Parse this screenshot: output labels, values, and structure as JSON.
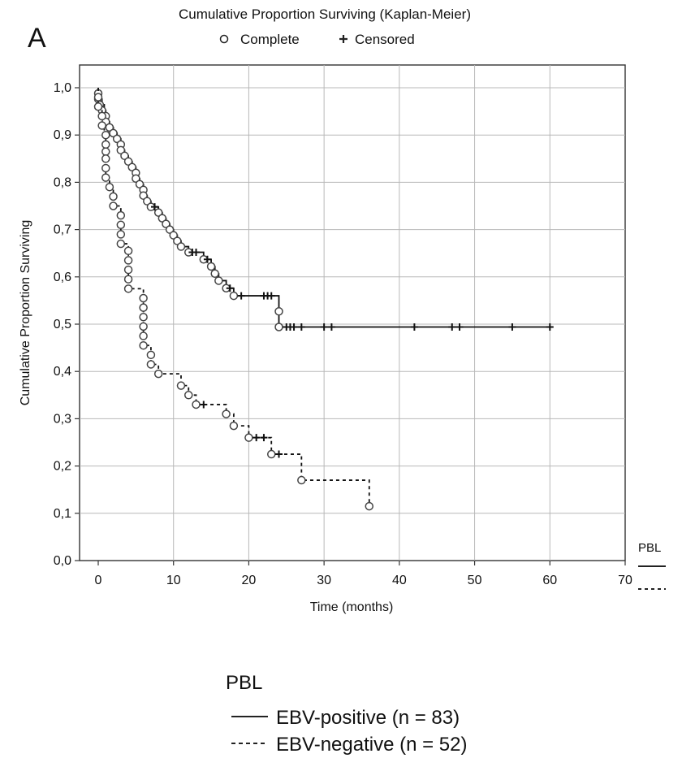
{
  "chart_data": {
    "type": "line",
    "panel_label": "A",
    "title": "Cumulative Proportion Surviving (Kaplan-Meier)",
    "marker_legend": [
      {
        "symbol": "circle",
        "label": "Complete"
      },
      {
        "symbol": "plus",
        "label": "Censored"
      }
    ],
    "xlabel": "Time (months)",
    "ylabel": "Cumulative Proportion Surviving",
    "xlim": [
      0,
      70
    ],
    "ylim": [
      0,
      1
    ],
    "xticks": [
      "0",
      "10",
      "20",
      "30",
      "40",
      "50",
      "60",
      "70"
    ],
    "yticks": [
      "0,0",
      "0,1",
      "0,2",
      "0,3",
      "0,4",
      "0,5",
      "0,6",
      "0,7",
      "0,8",
      "0,9",
      "1,0"
    ],
    "grid": true,
    "side_legend_title": "PBL",
    "legend_title": "PBL",
    "series": [
      {
        "name": "EBV-positive (n = 83)",
        "line_style": "solid",
        "steps": [
          [
            0,
            1.0
          ],
          [
            0,
            0.988
          ],
          [
            0.2,
            0.976
          ],
          [
            0.5,
            0.964
          ],
          [
            0.8,
            0.952
          ],
          [
            1,
            0.94
          ],
          [
            1.2,
            0.928
          ],
          [
            1.5,
            0.916
          ],
          [
            2,
            0.904
          ],
          [
            2.5,
            0.892
          ],
          [
            3,
            0.88
          ],
          [
            3.2,
            0.868
          ],
          [
            3.5,
            0.856
          ],
          [
            4,
            0.844
          ],
          [
            4.5,
            0.832
          ],
          [
            5,
            0.82
          ],
          [
            5.2,
            0.808
          ],
          [
            5.5,
            0.796
          ],
          [
            6,
            0.784
          ],
          [
            6.2,
            0.772
          ],
          [
            6.5,
            0.76
          ],
          [
            7,
            0.748
          ],
          [
            8,
            0.736
          ],
          [
            8.5,
            0.724
          ],
          [
            9,
            0.712
          ],
          [
            9.5,
            0.7
          ],
          [
            10,
            0.688
          ],
          [
            10.5,
            0.676
          ],
          [
            11,
            0.664
          ],
          [
            12,
            0.652
          ],
          [
            14,
            0.637
          ],
          [
            15,
            0.622
          ],
          [
            15.5,
            0.607
          ],
          [
            16,
            0.592
          ],
          [
            17,
            0.576
          ],
          [
            18,
            0.56
          ],
          [
            24,
            0.527
          ],
          [
            24,
            0.494
          ],
          [
            60,
            0.494
          ]
        ],
        "complete_events": [
          [
            0,
            0.988
          ],
          [
            0,
            0.976
          ],
          [
            0.2,
            0.964
          ],
          [
            0.5,
            0.952
          ],
          [
            1,
            0.94
          ],
          [
            1,
            0.928
          ],
          [
            1.5,
            0.916
          ],
          [
            2,
            0.904
          ],
          [
            2.5,
            0.892
          ],
          [
            3,
            0.88
          ],
          [
            3,
            0.868
          ],
          [
            3.5,
            0.856
          ],
          [
            4,
            0.844
          ],
          [
            4.5,
            0.832
          ],
          [
            5,
            0.82
          ],
          [
            5,
            0.808
          ],
          [
            5.5,
            0.796
          ],
          [
            6,
            0.784
          ],
          [
            6,
            0.772
          ],
          [
            6.5,
            0.76
          ],
          [
            7,
            0.748
          ],
          [
            8,
            0.736
          ],
          [
            8.5,
            0.724
          ],
          [
            9,
            0.712
          ],
          [
            9.5,
            0.7
          ],
          [
            10,
            0.688
          ],
          [
            10.5,
            0.676
          ],
          [
            11,
            0.664
          ],
          [
            12,
            0.652
          ],
          [
            14,
            0.637
          ],
          [
            15,
            0.622
          ],
          [
            15.5,
            0.607
          ],
          [
            16,
            0.592
          ],
          [
            17,
            0.576
          ],
          [
            18,
            0.56
          ],
          [
            24,
            0.527
          ],
          [
            24,
            0.494
          ]
        ],
        "censored": [
          [
            7.5,
            0.748
          ],
          [
            12.5,
            0.652
          ],
          [
            13,
            0.652
          ],
          [
            14.5,
            0.637
          ],
          [
            17.5,
            0.576
          ],
          [
            19,
            0.56
          ],
          [
            22,
            0.56
          ],
          [
            22.5,
            0.56
          ],
          [
            23,
            0.56
          ],
          [
            25,
            0.494
          ],
          [
            25.5,
            0.494
          ],
          [
            26,
            0.494
          ],
          [
            27,
            0.494
          ],
          [
            30,
            0.494
          ],
          [
            31,
            0.494
          ],
          [
            42,
            0.494
          ],
          [
            47,
            0.494
          ],
          [
            48,
            0.494
          ],
          [
            55,
            0.494
          ],
          [
            60,
            0.494
          ]
        ]
      },
      {
        "name": "EBV-negative (n = 52)",
        "line_style": "dashed",
        "steps": [
          [
            0,
            1.0
          ],
          [
            0,
            0.98
          ],
          [
            0,
            0.96
          ],
          [
            0.5,
            0.94
          ],
          [
            0.5,
            0.92
          ],
          [
            0.8,
            0.9
          ],
          [
            1,
            0.88
          ],
          [
            1,
            0.865
          ],
          [
            1,
            0.85
          ],
          [
            1,
            0.83
          ],
          [
            1,
            0.81
          ],
          [
            1.5,
            0.79
          ],
          [
            2,
            0.77
          ],
          [
            2,
            0.75
          ],
          [
            3,
            0.73
          ],
          [
            3,
            0.71
          ],
          [
            3,
            0.69
          ],
          [
            3,
            0.67
          ],
          [
            4,
            0.655
          ],
          [
            4,
            0.635
          ],
          [
            4,
            0.615
          ],
          [
            4,
            0.595
          ],
          [
            4,
            0.575
          ],
          [
            6,
            0.555
          ],
          [
            6,
            0.535
          ],
          [
            6,
            0.515
          ],
          [
            6,
            0.495
          ],
          [
            6,
            0.475
          ],
          [
            6,
            0.455
          ],
          [
            7,
            0.435
          ],
          [
            7,
            0.415
          ],
          [
            8,
            0.395
          ],
          [
            11,
            0.37
          ],
          [
            12,
            0.35
          ],
          [
            13,
            0.33
          ],
          [
            17,
            0.31
          ],
          [
            18,
            0.285
          ],
          [
            20,
            0.26
          ],
          [
            23,
            0.225
          ],
          [
            27,
            0.17
          ],
          [
            36,
            0.115
          ]
        ],
        "complete_events": [
          [
            0,
            0.98
          ],
          [
            0,
            0.96
          ],
          [
            0.5,
            0.94
          ],
          [
            0.5,
            0.92
          ],
          [
            1,
            0.9
          ],
          [
            1,
            0.88
          ],
          [
            1,
            0.865
          ],
          [
            1,
            0.85
          ],
          [
            1,
            0.83
          ],
          [
            1,
            0.81
          ],
          [
            1.5,
            0.79
          ],
          [
            2,
            0.77
          ],
          [
            2,
            0.75
          ],
          [
            3,
            0.73
          ],
          [
            3,
            0.71
          ],
          [
            3,
            0.69
          ],
          [
            3,
            0.67
          ],
          [
            4,
            0.655
          ],
          [
            4,
            0.635
          ],
          [
            4,
            0.615
          ],
          [
            4,
            0.595
          ],
          [
            4,
            0.575
          ],
          [
            6,
            0.555
          ],
          [
            6,
            0.535
          ],
          [
            6,
            0.515
          ],
          [
            6,
            0.495
          ],
          [
            6,
            0.475
          ],
          [
            6,
            0.455
          ],
          [
            7,
            0.435
          ],
          [
            7,
            0.415
          ],
          [
            8,
            0.395
          ],
          [
            11,
            0.37
          ],
          [
            12,
            0.35
          ],
          [
            13,
            0.33
          ],
          [
            17,
            0.31
          ],
          [
            18,
            0.285
          ],
          [
            20,
            0.26
          ],
          [
            23,
            0.225
          ],
          [
            27,
            0.17
          ],
          [
            36,
            0.115
          ]
        ],
        "censored": [
          [
            14,
            0.33
          ],
          [
            21,
            0.26
          ],
          [
            22,
            0.26
          ],
          [
            24,
            0.225
          ]
        ]
      }
    ]
  }
}
